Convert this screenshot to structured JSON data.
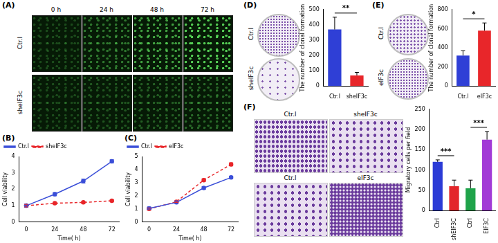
{
  "image_panels": [
    {
      "panel_label": "(A)",
      "columns": [
        "0 h",
        "24 h",
        "48 h",
        "72 h"
      ],
      "rows": [
        "Ctr.l",
        "sheIF3c"
      ]
    },
    {
      "panel_label": "(D)",
      "rows": [
        "Ctr.l",
        "sheIF3c"
      ]
    },
    {
      "panel_label": "(E)",
      "rows": [
        "Ctr.l",
        "eIF3c"
      ]
    },
    {
      "panel_label": "(F)",
      "images": [
        "Ctr.l",
        "sheIF3c",
        "Ctr.l",
        "eIF3c"
      ]
    }
  ],
  "chart_data": [
    {
      "panel_label": "(B)",
      "type": "line",
      "x": [
        0,
        24,
        48,
        72
      ],
      "x_label": "Time( h)",
      "y_label": "Cell viability",
      "xlim": [
        -6,
        78
      ],
      "xticks": [
        0,
        24,
        48,
        72
      ],
      "ylim": [
        0,
        4
      ],
      "yticks": [
        0,
        1,
        2,
        3,
        4
      ],
      "grid": false,
      "legend": "top-left",
      "series": [
        {
          "name": "Ctr.l",
          "color": "#3b4fd8",
          "marker": "circle",
          "line_style": "solid",
          "values": [
            1.0,
            1.7,
            2.5,
            3.7
          ],
          "errors": [
            0.1,
            0.1,
            0.12,
            0.1
          ]
        },
        {
          "name": "sheIF3c",
          "color": "#e8262a",
          "marker": "circle",
          "line_style": "dashed",
          "values": [
            1.0,
            1.15,
            1.2,
            1.3
          ],
          "errors": [
            0.08,
            0.05,
            0.05,
            0.05
          ]
        }
      ]
    },
    {
      "panel_label": "(C)",
      "type": "line",
      "x": [
        0,
        24,
        48,
        72
      ],
      "x_label": "Time( h)",
      "y_label": "Cell viability",
      "xlim": [
        -6,
        78
      ],
      "xticks": [
        0,
        24,
        48,
        72
      ],
      "ylim": [
        0,
        5
      ],
      "yticks": [
        0,
        1,
        2,
        3,
        4,
        5
      ],
      "grid": false,
      "legend": "top-left",
      "series": [
        {
          "name": "Ctr.l",
          "color": "#3b4fd8",
          "marker": "circle",
          "line_style": "solid",
          "values": [
            1.05,
            1.5,
            2.6,
            3.4
          ],
          "errors": [
            0.1,
            0.08,
            0.1,
            0.1
          ]
        },
        {
          "name": "eIF3c",
          "color": "#e8262a",
          "marker": "circle",
          "line_style": "dashed",
          "values": [
            1.0,
            1.55,
            3.2,
            4.4
          ],
          "errors": [
            0.08,
            0.06,
            0.1,
            0.12
          ]
        }
      ]
    },
    {
      "type": "bar",
      "categories": [
        "Ctr.l",
        "sheIF3c"
      ],
      "values": [
        370,
        70
      ],
      "errors": [
        80,
        20
      ],
      "colors": [
        "#2f3fd6",
        "#e8262a"
      ],
      "y_label": "The number of clonal formation",
      "ylim": [
        0,
        500
      ],
      "yticks": [
        0,
        100,
        200,
        300,
        400,
        500
      ],
      "grid": false,
      "annotations": [
        {
          "text": "**",
          "from": 0,
          "to": 1
        }
      ]
    },
    {
      "type": "bar",
      "categories": [
        "Ctr.l",
        "eIF3c"
      ],
      "values": [
        320,
        580
      ],
      "errors": [
        50,
        80
      ],
      "colors": [
        "#2f3fd6",
        "#e8262a"
      ],
      "y_label": "The number of clonal formation",
      "ylim": [
        0,
        800
      ],
      "yticks": [
        0,
        200,
        400,
        600,
        800
      ],
      "grid": false,
      "annotations": [
        {
          "text": "*",
          "from": 0,
          "to": 1
        }
      ]
    },
    {
      "type": "bar",
      "categories": [
        "Ctrl",
        "shEIF3C",
        "Ctrl",
        "EIF3C"
      ],
      "values": [
        120,
        60,
        55,
        175
      ],
      "errors": [
        5,
        15,
        20,
        20
      ],
      "colors": [
        "#2b3bd6",
        "#e3262a",
        "#1fa34a",
        "#a23ad6"
      ],
      "y_label": "Migratory cells per field",
      "ylim": [
        0,
        250
      ],
      "yticks": [
        0,
        50,
        100,
        150,
        200,
        250
      ],
      "grid": false,
      "annotations": [
        {
          "text": "***",
          "from": 0,
          "to": 1
        },
        {
          "text": "***",
          "from": 2,
          "to": 3
        }
      ]
    }
  ]
}
